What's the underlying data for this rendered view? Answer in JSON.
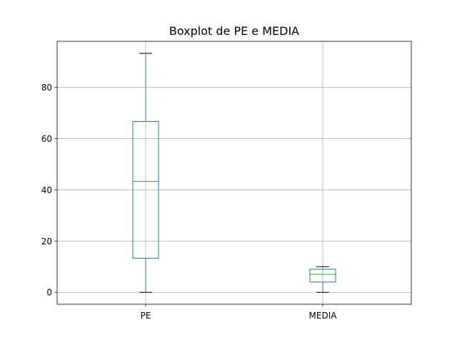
{
  "chart_data": {
    "type": "box",
    "title": "Boxplot de PE e MEDIA",
    "xlabel": "",
    "ylabel": "",
    "categories": [
      "PE",
      "MEDIA"
    ],
    "series": [
      {
        "name": "PE",
        "whisker_low": 0,
        "q1": 13.3,
        "median": 43.3,
        "q3": 66.7,
        "whisker_high": 93.3
      },
      {
        "name": "MEDIA",
        "whisker_low": 0,
        "q1": 4,
        "median": 7,
        "q3": 9,
        "whisker_high": 10
      }
    ],
    "ylim": [
      -4.67,
      98
    ],
    "yticks": [
      0,
      20,
      40,
      60,
      80
    ],
    "grid": true,
    "colors": {
      "box": "#1f77b4",
      "median": "#2ca02c",
      "whisker": "#1f77b4",
      "cap": "#000000",
      "grid": "#b0b0b0",
      "axes": "#000000"
    }
  }
}
